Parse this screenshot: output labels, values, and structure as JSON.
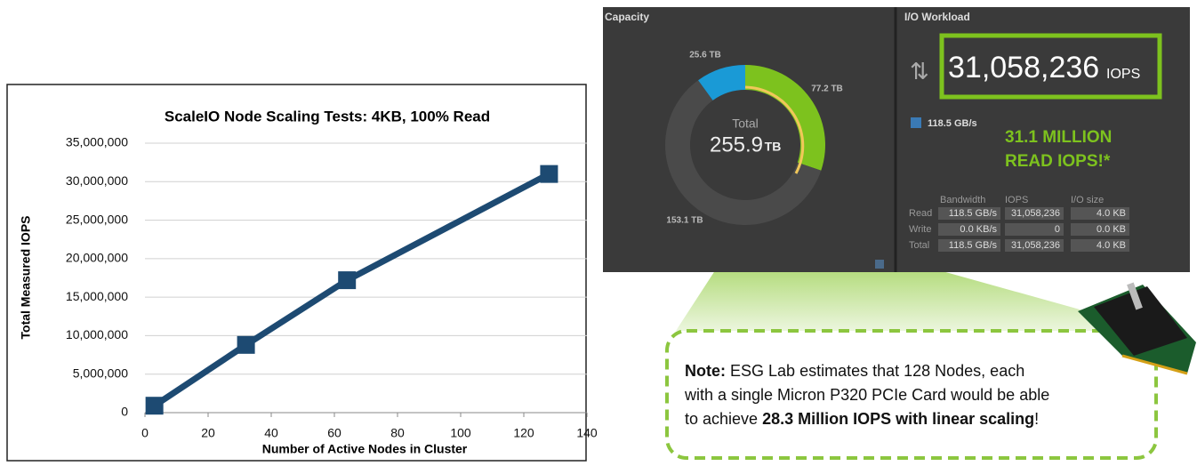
{
  "chart_data": [
    {
      "type": "line",
      "title": "ScaleIO Node Scaling Tests: 4KB, 100% Read",
      "x_label": "Number of Active Nodes in Cluster",
      "y_label": "Total Measured IOPS",
      "x": [
        3,
        32,
        64,
        128
      ],
      "values": [
        900000,
        8800000,
        17200000,
        31000000
      ],
      "color": "#1d4a72",
      "xlim": [
        0,
        140
      ],
      "xticks": [
        0,
        20,
        40,
        60,
        80,
        100,
        120,
        140
      ],
      "ylim": [
        0,
        35000000
      ],
      "yticks": [
        0,
        {
          "value": 5000000,
          "label": "5,000,000"
        },
        {
          "value": 10000000,
          "label": "10,000,000"
        },
        {
          "value": 15000000,
          "label": "15,000,000"
        },
        {
          "value": 20000000,
          "label": "20,000,000"
        },
        {
          "value": 25000000,
          "label": "25,000,000"
        },
        {
          "value": 30000000,
          "label": "30,000,000"
        },
        {
          "value": 35000000,
          "label": "35,000,000"
        }
      ],
      "grid": true
    },
    {
      "type": "pie",
      "title": "Capacity",
      "categories": [
        null,
        null,
        null
      ],
      "values": [
        77.2,
        153.1,
        25.6
      ],
      "value_labels": [
        "77.2 TB",
        "153.1 TB",
        "25.6 TB"
      ],
      "colors": [
        "#7dc21e",
        "#4a4a4a",
        "#1a9ad6"
      ]
    }
  ],
  "dashboard": {
    "capacity": {
      "total_label": "Total",
      "total_value": "255.9",
      "total_unit": "TB"
    },
    "io_title": "I/O Workload",
    "iops_value": "31,058,236",
    "iops_unit": "IOPS",
    "bandwidth": "118.5 GB/s",
    "headline": [
      "31.1 MILLION",
      "READ IOPS!*"
    ],
    "table": {
      "headers": [
        "Bandwidth",
        "IOPS",
        "I/O size"
      ],
      "rows": [
        [
          "Read",
          "118.5 GB/s",
          "31,058,236",
          "4.0 KB"
        ],
        [
          "Write",
          "0.0 KB/s",
          "0",
          "0.0 KB"
        ],
        [
          "Total",
          "118.5 GB/s",
          "31,058,236",
          "4.0 KB"
        ]
      ]
    }
  },
  "note": {
    "lead": "Note:",
    "text1": "ESG Lab estimates that 128 Nodes, each",
    "text2": "with a single Micron P320 PCIe Card would be able",
    "text3": "to achieve",
    "bold": "28.3 Million IOPS with linear scaling",
    "end": "!"
  }
}
